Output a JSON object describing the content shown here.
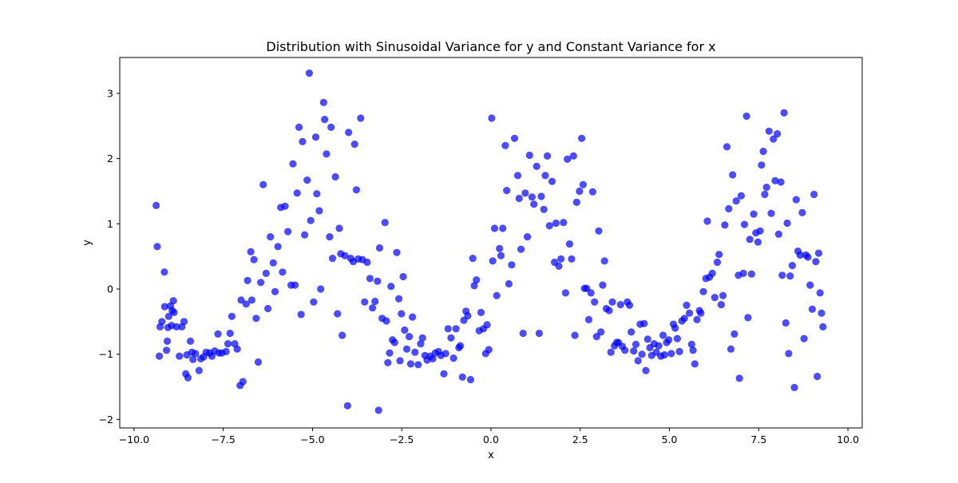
{
  "chart_data": {
    "type": "scatter",
    "title": "Distribution with Sinusoidal Variance for y and Constant Variance for x",
    "xlabel": "x",
    "ylabel": "y",
    "xlim": [
      -10.4,
      10.4
    ],
    "ylim": [
      -2.13,
      3.55
    ],
    "xticks": [
      -10,
      -7.5,
      -5,
      -2.5,
      0,
      2.5,
      5,
      7.5,
      10
    ],
    "xtick_labels": [
      "−10.0",
      "−7.5",
      "−5.0",
      "−2.5",
      "0.0",
      "2.5",
      "5.0",
      "7.5",
      "10.0"
    ],
    "yticks": [
      -2,
      -1,
      0,
      1,
      2,
      3
    ],
    "ytick_labels": [
      "−2",
      "−1",
      "0",
      "1",
      "2",
      "3"
    ],
    "grid": false,
    "legend": "none",
    "marker_color": "#0000ff",
    "marker_alpha": 0.7,
    "points": [
      [
        -9.38,
        1.28
      ],
      [
        -9.35,
        0.65
      ],
      [
        -9.29,
        -1.03
      ],
      [
        -9.27,
        -0.58
      ],
      [
        -9.22,
        -0.5
      ],
      [
        -9.15,
        0.26
      ],
      [
        -9.14,
        -0.27
      ],
      [
        -9.09,
        -0.94
      ],
      [
        -9.07,
        -0.8
      ],
      [
        -9.05,
        -0.59
      ],
      [
        -9.03,
        -0.42
      ],
      [
        -8.98,
        -0.26
      ],
      [
        -8.95,
        -0.56
      ],
      [
        -8.93,
        -0.33
      ],
      [
        -8.9,
        -0.18
      ],
      [
        -8.88,
        -0.36
      ],
      [
        -8.81,
        -0.58
      ],
      [
        -8.73,
        -1.03
      ],
      [
        -8.66,
        -0.58
      ],
      [
        -8.6,
        -0.5
      ],
      [
        -8.55,
        -1.3
      ],
      [
        -8.52,
        -1.01
      ],
      [
        -8.49,
        -1.36
      ],
      [
        -8.42,
        -0.8
      ],
      [
        -8.38,
        -0.97
      ],
      [
        -8.35,
        -1.08
      ],
      [
        -8.28,
        -0.99
      ],
      [
        -8.18,
        -1.25
      ],
      [
        -8.13,
        -1.07
      ],
      [
        -8.05,
        -1.04
      ],
      [
        -7.98,
        -0.97
      ],
      [
        -7.88,
        -0.98
      ],
      [
        -7.82,
        -1.03
      ],
      [
        -7.74,
        -0.95
      ],
      [
        -7.65,
        -0.69
      ],
      [
        -7.62,
        -0.98
      ],
      [
        -7.54,
        -0.98
      ],
      [
        -7.42,
        -0.96
      ],
      [
        -7.37,
        -0.84
      ],
      [
        -7.31,
        -0.68
      ],
      [
        -7.26,
        -0.42
      ],
      [
        -7.18,
        -0.84
      ],
      [
        -7.11,
        -0.92
      ],
      [
        -7.03,
        -1.48
      ],
      [
        -7.0,
        -0.17
      ],
      [
        -6.95,
        -1.42
      ],
      [
        -6.86,
        -0.23
      ],
      [
        -6.82,
        0.13
      ],
      [
        -6.73,
        0.57
      ],
      [
        -6.7,
        -0.17
      ],
      [
        -6.64,
        0.45
      ],
      [
        -6.58,
        -0.45
      ],
      [
        -6.52,
        -1.12
      ],
      [
        -6.45,
        0.1
      ],
      [
        -6.38,
        1.6
      ],
      [
        -6.3,
        0.24
      ],
      [
        -6.25,
        -0.3
      ],
      [
        -6.18,
        0.8
      ],
      [
        -6.1,
        0.4
      ],
      [
        -6.05,
        -0.04
      ],
      [
        -5.97,
        0.65
      ],
      [
        -5.89,
        1.25
      ],
      [
        -5.84,
        0.26
      ],
      [
        -5.77,
        1.27
      ],
      [
        -5.69,
        0.88
      ],
      [
        -5.6,
        0.06
      ],
      [
        -5.55,
        1.92
      ],
      [
        -5.49,
        0.06
      ],
      [
        -5.43,
        1.47
      ],
      [
        -5.38,
        2.48
      ],
      [
        -5.32,
        -0.39
      ],
      [
        -5.28,
        2.26
      ],
      [
        -5.22,
        0.83
      ],
      [
        -5.15,
        1.67
      ],
      [
        -5.09,
        3.31
      ],
      [
        -5.05,
        1.05
      ],
      [
        -4.97,
        -0.2
      ],
      [
        -4.91,
        2.33
      ],
      [
        -4.88,
        1.46
      ],
      [
        -4.81,
        1.2
      ],
      [
        -4.77,
        0.0
      ],
      [
        -4.69,
        2.86
      ],
      [
        -4.66,
        2.6
      ],
      [
        -4.61,
        2.07
      ],
      [
        -4.52,
        0.8
      ],
      [
        -4.48,
        2.48
      ],
      [
        -4.44,
        0.47
      ],
      [
        -4.36,
        1.72
      ],
      [
        -4.3,
        -0.38
      ],
      [
        -4.25,
        0.93
      ],
      [
        -4.21,
        0.54
      ],
      [
        -4.17,
        -0.71
      ],
      [
        -4.09,
        0.51
      ],
      [
        -4.02,
        -1.79
      ],
      [
        -3.99,
        2.4
      ],
      [
        -3.93,
        0.47
      ],
      [
        -3.86,
        0.42
      ],
      [
        -3.82,
        2.22
      ],
      [
        -3.77,
        1.52
      ],
      [
        -3.72,
        0.46
      ],
      [
        -3.65,
        2.62
      ],
      [
        -3.6,
        0.45
      ],
      [
        -3.54,
        -0.2
      ],
      [
        -3.47,
        0.41
      ],
      [
        -3.39,
        0.16
      ],
      [
        -3.32,
        -0.29
      ],
      [
        -3.25,
        -0.19
      ],
      [
        -3.18,
        0.12
      ],
      [
        -3.15,
        -1.86
      ],
      [
        -3.12,
        0.63
      ],
      [
        -3.05,
        -0.45
      ],
      [
        -2.97,
        1.02
      ],
      [
        -2.93,
        -0.49
      ],
      [
        -2.89,
        -1.13
      ],
      [
        -2.84,
        -0.98
      ],
      [
        -2.8,
        0.04
      ],
      [
        -2.76,
        -0.78
      ],
      [
        -2.7,
        -0.82
      ],
      [
        -2.64,
        0.56
      ],
      [
        -2.58,
        -0.15
      ],
      [
        -2.55,
        -1.1
      ],
      [
        -2.51,
        -0.38
      ],
      [
        -2.46,
        0.19
      ],
      [
        -2.42,
        -0.63
      ],
      [
        -2.36,
        -0.92
      ],
      [
        -2.29,
        -0.73
      ],
      [
        -2.25,
        -1.15
      ],
      [
        -2.2,
        -0.43
      ],
      [
        -2.13,
        -0.97
      ],
      [
        -2.04,
        -1.16
      ],
      [
        -1.97,
        -0.84
      ],
      [
        -1.92,
        -0.75
      ],
      [
        -1.85,
        -1.02
      ],
      [
        -1.79,
        -1.09
      ],
      [
        -1.7,
        -1.03
      ],
      [
        -1.63,
        -1.07
      ],
      [
        -1.56,
        -0.98
      ],
      [
        -1.47,
        -0.96
      ],
      [
        -1.4,
        -1.02
      ],
      [
        -1.32,
        -1.3
      ],
      [
        -1.27,
        -0.99
      ],
      [
        -1.2,
        -0.61
      ],
      [
        -1.12,
        -0.75
      ],
      [
        -1.05,
        -1.06
      ],
      [
        -0.98,
        -0.61
      ],
      [
        -0.9,
        -0.9
      ],
      [
        -0.86,
        -0.87
      ],
      [
        -0.8,
        -1.35
      ],
      [
        -0.76,
        -0.48
      ],
      [
        -0.7,
        -0.34
      ],
      [
        -0.65,
        -0.41
      ],
      [
        -0.57,
        -1.39
      ],
      [
        -0.51,
        0.47
      ],
      [
        -0.47,
        0.05
      ],
      [
        -0.41,
        0.14
      ],
      [
        -0.33,
        -0.64
      ],
      [
        -0.28,
        -0.36
      ],
      [
        -0.21,
        -0.61
      ],
      [
        -0.15,
        -0.99
      ],
      [
        -0.11,
        -0.55
      ],
      [
        -0.06,
        -0.93
      ],
      [
        0.02,
        2.62
      ],
      [
        0.05,
        0.43
      ],
      [
        0.1,
        0.93
      ],
      [
        0.16,
        -0.1
      ],
      [
        0.24,
        0.62
      ],
      [
        0.28,
        0.51
      ],
      [
        0.33,
        0.93
      ],
      [
        0.4,
        2.2
      ],
      [
        0.44,
        1.51
      ],
      [
        0.5,
        0.08
      ],
      [
        0.58,
        0.37
      ],
      [
        0.66,
        2.31
      ],
      [
        0.75,
        1.74
      ],
      [
        0.79,
        1.39
      ],
      [
        0.84,
        0.61
      ],
      [
        0.9,
        -0.68
      ],
      [
        0.96,
        1.47
      ],
      [
        1.02,
        0.8
      ],
      [
        1.08,
        2.05
      ],
      [
        1.15,
        1.41
      ],
      [
        1.2,
        1.3
      ],
      [
        1.28,
        1.88
      ],
      [
        1.35,
        -0.68
      ],
      [
        1.41,
        1.42
      ],
      [
        1.48,
        1.22
      ],
      [
        1.52,
        1.74
      ],
      [
        1.58,
        2.04
      ],
      [
        1.64,
        0.97
      ],
      [
        1.71,
        1.65
      ],
      [
        1.78,
        0.41
      ],
      [
        1.82,
        1.01
      ],
      [
        1.9,
        0.35
      ],
      [
        1.96,
        0.46
      ],
      [
        2.03,
        1.02
      ],
      [
        2.09,
        -0.06
      ],
      [
        2.14,
        1.99
      ],
      [
        2.2,
        0.69
      ],
      [
        2.26,
        0.46
      ],
      [
        2.31,
        2.04
      ],
      [
        2.35,
        -0.71
      ],
      [
        2.4,
        1.33
      ],
      [
        2.48,
        1.5
      ],
      [
        2.54,
        2.31
      ],
      [
        2.58,
        1.6
      ],
      [
        2.62,
        0.01
      ],
      [
        2.68,
        0.01
      ],
      [
        2.74,
        -0.47
      ],
      [
        2.8,
        -0.06
      ],
      [
        2.85,
        1.49
      ],
      [
        2.9,
        -0.2
      ],
      [
        2.96,
        -0.73
      ],
      [
        3.02,
        0.89
      ],
      [
        3.08,
        -0.66
      ],
      [
        3.13,
        0.06
      ],
      [
        3.18,
        0.43
      ],
      [
        3.23,
        -0.3
      ],
      [
        3.31,
        -0.33
      ],
      [
        3.36,
        -0.97
      ],
      [
        3.4,
        -0.2
      ],
      [
        3.46,
        -0.87
      ],
      [
        3.52,
        -0.82
      ],
      [
        3.57,
        -0.82
      ],
      [
        3.63,
        -0.24
      ],
      [
        3.68,
        -0.88
      ],
      [
        3.75,
        -0.94
      ],
      [
        3.82,
        -0.2
      ],
      [
        3.88,
        -0.25
      ],
      [
        3.93,
        -0.66
      ],
      [
        4.0,
        -0.95
      ],
      [
        4.06,
        -0.85
      ],
      [
        4.12,
        -1.1
      ],
      [
        4.18,
        -0.54
      ],
      [
        4.23,
        -1.0
      ],
      [
        4.29,
        -0.53
      ],
      [
        4.34,
        -1.25
      ],
      [
        4.39,
        -0.77
      ],
      [
        4.45,
        -0.9
      ],
      [
        4.5,
        -1.02
      ],
      [
        4.57,
        -0.84
      ],
      [
        4.63,
        -0.97
      ],
      [
        4.7,
        -0.87
      ],
      [
        4.76,
        -1.03
      ],
      [
        4.82,
        -0.71
      ],
      [
        4.86,
        -1.01
      ],
      [
        4.92,
        -0.82
      ],
      [
        4.98,
        -0.78
      ],
      [
        5.05,
        -0.99
      ],
      [
        5.11,
        -0.54
      ],
      [
        5.16,
        -0.6
      ],
      [
        5.22,
        -0.76
      ],
      [
        5.28,
        -0.96
      ],
      [
        5.35,
        -0.49
      ],
      [
        5.42,
        -0.45
      ],
      [
        5.48,
        -0.25
      ],
      [
        5.56,
        -0.37
      ],
      [
        5.62,
        -0.85
      ],
      [
        5.66,
        -0.94
      ],
      [
        5.71,
        -1.15
      ],
      [
        5.77,
        -0.47
      ],
      [
        5.84,
        -0.33
      ],
      [
        5.88,
        -0.37
      ],
      [
        5.95,
        -0.04
      ],
      [
        6.02,
        0.16
      ],
      [
        6.06,
        1.04
      ],
      [
        6.12,
        0.18
      ],
      [
        6.2,
        0.24
      ],
      [
        6.27,
        -0.13
      ],
      [
        6.34,
        0.41
      ],
      [
        6.39,
        0.53
      ],
      [
        6.45,
        -0.24
      ],
      [
        6.5,
        -0.1
      ],
      [
        6.55,
        0.98
      ],
      [
        6.61,
        2.18
      ],
      [
        6.66,
        1.23
      ],
      [
        6.72,
        -0.92
      ],
      [
        6.77,
        1.75
      ],
      [
        6.82,
        -0.69
      ],
      [
        6.87,
        1.35
      ],
      [
        6.93,
        0.21
      ],
      [
        6.96,
        -1.37
      ],
      [
        7.01,
        1.43
      ],
      [
        7.07,
        0.24
      ],
      [
        7.1,
        0.99
      ],
      [
        7.16,
        2.65
      ],
      [
        7.2,
        -0.44
      ],
      [
        7.25,
        0.76
      ],
      [
        7.3,
        0.23
      ],
      [
        7.36,
        1.15
      ],
      [
        7.42,
        0.86
      ],
      [
        7.48,
        0.72
      ],
      [
        7.54,
        0.89
      ],
      [
        7.58,
        1.9
      ],
      [
        7.63,
        2.11
      ],
      [
        7.67,
        1.45
      ],
      [
        7.72,
        1.56
      ],
      [
        7.79,
        2.42
      ],
      [
        7.85,
        1.16
      ],
      [
        7.91,
        2.3
      ],
      [
        7.96,
        1.66
      ],
      [
        8.02,
        2.38
      ],
      [
        8.06,
        0.84
      ],
      [
        8.12,
        1.64
      ],
      [
        8.16,
        0.21
      ],
      [
        8.21,
        2.7
      ],
      [
        8.26,
        -0.52
      ],
      [
        8.3,
        1.01
      ],
      [
        8.34,
        -0.99
      ],
      [
        8.38,
        0.2
      ],
      [
        8.44,
        0.36
      ],
      [
        8.5,
        -1.51
      ],
      [
        8.55,
        1.37
      ],
      [
        8.6,
        0.58
      ],
      [
        8.66,
        0.52
      ],
      [
        8.72,
        1.17
      ],
      [
        8.77,
        -0.76
      ],
      [
        8.82,
        0.52
      ],
      [
        8.88,
        0.49
      ],
      [
        8.94,
        0.06
      ],
      [
        9.0,
        -0.31
      ],
      [
        9.05,
        1.45
      ],
      [
        9.1,
        0.42
      ],
      [
        9.14,
        -1.34
      ],
      [
        9.18,
        0.55
      ],
      [
        9.22,
        -0.06
      ],
      [
        9.26,
        -0.37
      ],
      [
        9.3,
        -0.58
      ]
    ]
  }
}
